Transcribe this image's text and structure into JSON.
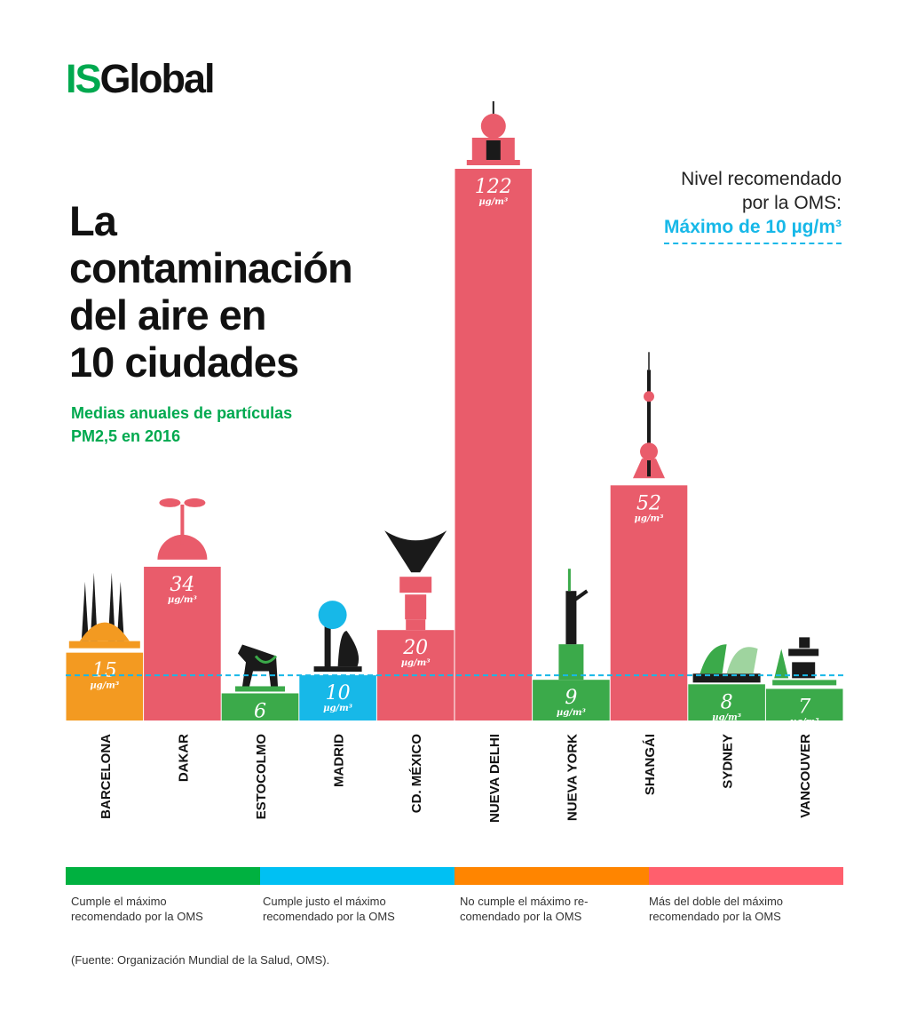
{
  "logo": {
    "part1": "IS",
    "part2": "Global"
  },
  "title": [
    "La",
    "contaminación",
    "del aire en",
    "10 ciudades"
  ],
  "subtitle": [
    "Medias anuales de partículas",
    "PM2,5 en 2016"
  ],
  "who_note": {
    "line1": "Nivel recomendado",
    "line2": "por la OMS:",
    "line3": "Máximo de 10 µg/m³"
  },
  "colors": {
    "green": "#3BAA4A",
    "blue": "#17B8E8",
    "orange": "#F39A21",
    "pink": "#E95C6B",
    "threshold": "#17B8E8"
  },
  "chart_data": {
    "type": "bar",
    "title": "La contaminación del aire en 10 ciudades",
    "subtitle": "Medias anuales de partículas PM2,5 en 2016",
    "unit": "µg/m³",
    "categories": [
      "BARCELONA",
      "DAKAR",
      "ESTOCOLMO",
      "MADRID",
      "CD. MÉXICO",
      "NUEVA DELHI",
      "NUEVA YORK",
      "SHANGÁI",
      "SYDNEY",
      "VANCOUVER"
    ],
    "values": [
      15,
      34,
      6,
      10,
      20,
      122,
      9,
      52,
      8,
      7
    ],
    "value_labels": [
      "15",
      "34",
      "6",
      "10",
      "20",
      "122",
      "9",
      "52",
      "8",
      "7"
    ],
    "categories_class": [
      "orange",
      "pink",
      "green",
      "blue",
      "pink",
      "pink",
      "green",
      "pink",
      "green",
      "green"
    ],
    "threshold": 10,
    "ylim": [
      0,
      122
    ],
    "grid": false
  },
  "legend": [
    {
      "color": "#00B140",
      "label_line1": "Cumple el máximo",
      "label_line2": "recomendado por la OMS"
    },
    {
      "color": "#00C0F3",
      "label_line1": "Cumple justo el máximo",
      "label_line2": "recomendado por la OMS"
    },
    {
      "color": "#FF8500",
      "label_line1": "No cumple el máximo re-",
      "label_line2": "comendado por la OMS"
    },
    {
      "color": "#FF5F6D",
      "label_line1": "Más del doble del máximo",
      "label_line2": "recomendado por la OMS"
    }
  ],
  "source": "(Fuente: Organización Mundial de la Salud, OMS)."
}
